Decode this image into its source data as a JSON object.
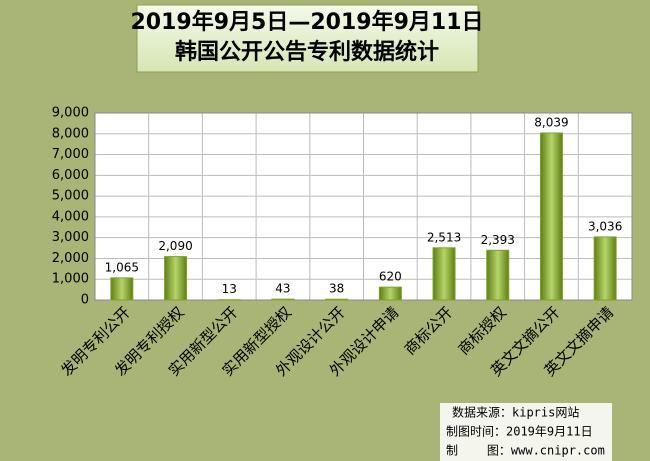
{
  "chart_data": {
    "type": "bar",
    "title": [
      "2019年9月5日—2019年9月11日",
      "韩国公开公告专利数据统计"
    ],
    "categories": [
      "发明专利公开",
      "发明专利授权",
      "实用新型公开",
      "实用新型授权",
      "外观设计公开",
      "外观设计申请",
      "商标公开",
      "商标授权",
      "英文文摘公开",
      "英文文摘申请"
    ],
    "values": [
      1065,
      2090,
      13,
      43,
      38,
      620,
      2513,
      2393,
      8039,
      3036
    ],
    "value_labels": [
      "1,065",
      "2,090",
      "13",
      "43",
      "38",
      "620",
      "2,513",
      "2,393",
      "8,039",
      "3,036"
    ],
    "color": "#7fa22a",
    "ylim": [
      0,
      9000
    ],
    "yticks": [
      0,
      {
        "value": 1000,
        "label": "1,000"
      },
      {
        "value": 2000,
        "label": "2,000"
      },
      {
        "value": 3000,
        "label": "3,000"
      },
      {
        "value": 4000,
        "label": "4,000"
      },
      {
        "value": 5000,
        "label": "5,000"
      },
      {
        "value": 6000,
        "label": "6,000"
      },
      {
        "value": 7000,
        "label": "7,000"
      },
      {
        "value": 8000,
        "label": "8,000"
      },
      {
        "value": 9000,
        "label": "9,000"
      }
    ],
    "grid": true,
    "source": [
      "数据来源：kipris网站",
      "制图时间：2019年9月11日",
      "制    图：www.cnipr.com"
    ]
  }
}
